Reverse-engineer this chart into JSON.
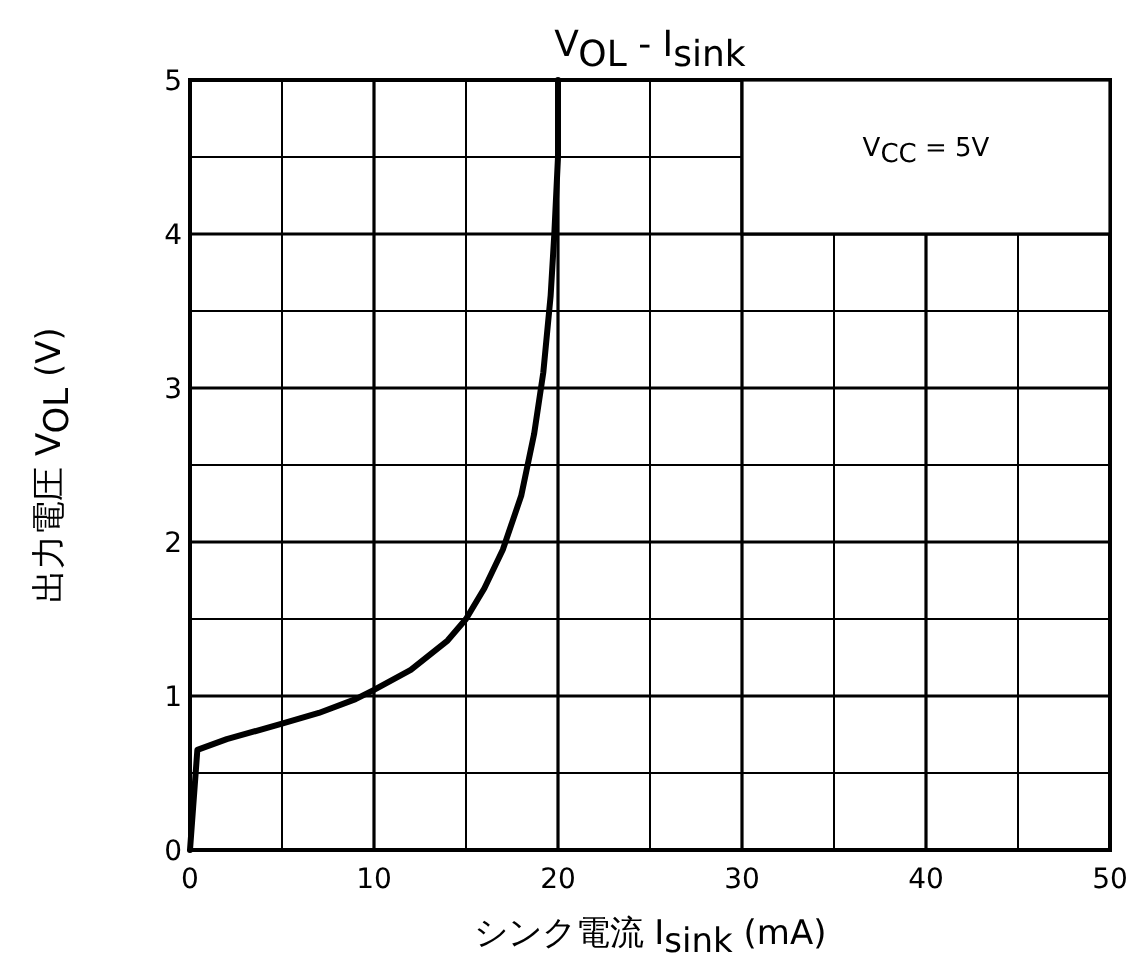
{
  "chart_data": {
    "type": "line",
    "title": "V$_{OL}$ - I$_{sink}$",
    "xlabel": "シンク電流 I$_{sink}$ (mA)",
    "ylabel": "出力電圧 V$_{OL}$ (V)",
    "annotations": [
      "V$_{CC}$ = 5V"
    ],
    "xlim": [
      0,
      50
    ],
    "ylim": [
      0,
      5
    ],
    "xticks": [
      0,
      10,
      20,
      30,
      40,
      50
    ],
    "yticks": [
      0,
      1,
      2,
      3,
      4,
      5
    ],
    "grid": true,
    "marker": "none",
    "line_style": "solid",
    "series": [
      {
        "color": "#000000",
        "x": [
          0,
          0.4,
          2,
          5,
          7,
          9,
          10,
          12,
          14,
          15,
          16,
          17,
          18,
          18.7,
          19.2,
          19.6,
          19.8,
          20,
          20
        ],
        "values": [
          0,
          0.65,
          0.72,
          0.82,
          0.89,
          0.98,
          1.04,
          1.17,
          1.36,
          1.5,
          1.7,
          1.95,
          2.3,
          2.7,
          3.1,
          3.6,
          4,
          4.5,
          5
        ]
      }
    ]
  }
}
